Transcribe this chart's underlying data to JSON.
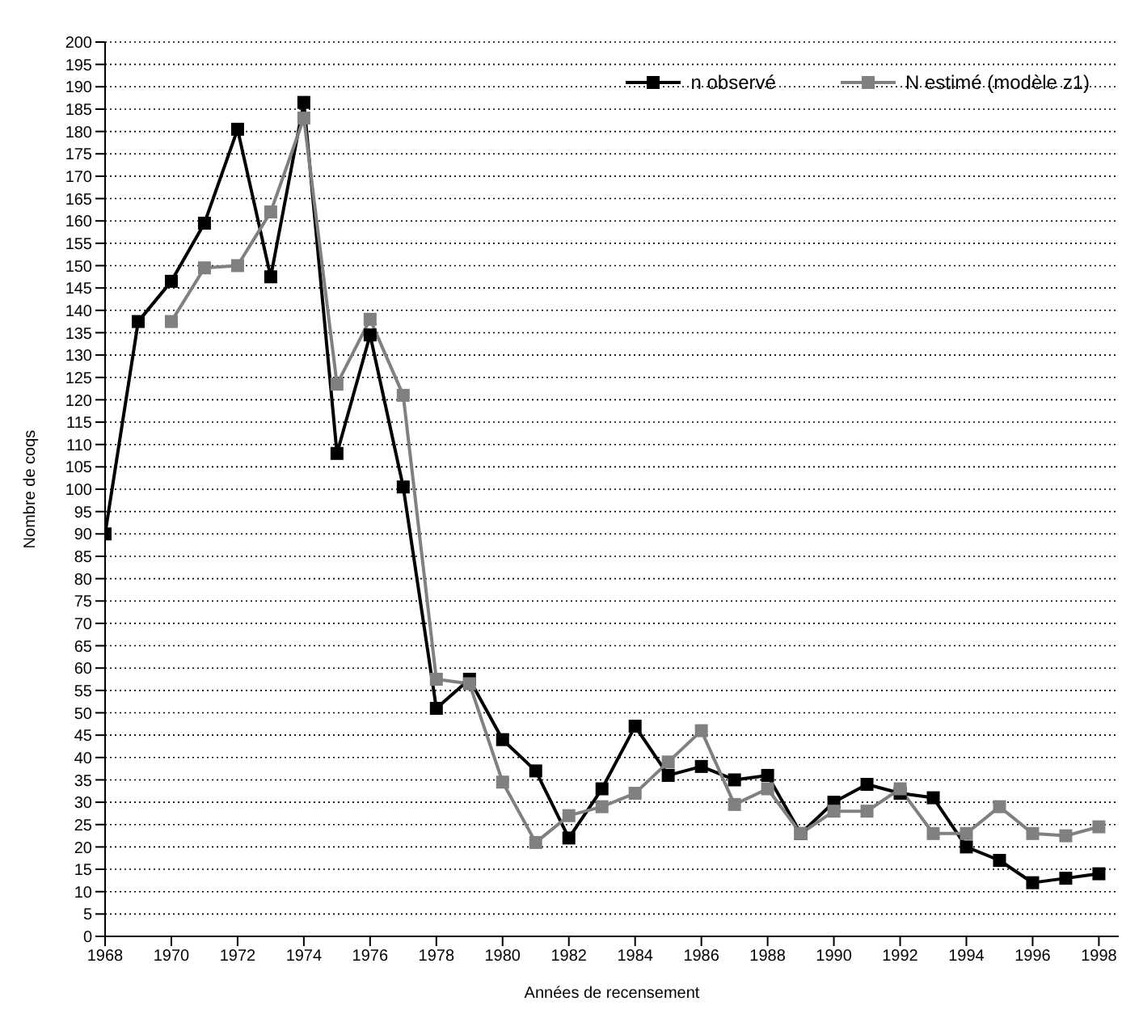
{
  "chart_data": {
    "type": "line",
    "xlabel": "Années de recensement",
    "ylabel": "Nombre de coqs",
    "x": [
      1968,
      1969,
      1970,
      1971,
      1972,
      1973,
      1974,
      1975,
      1976,
      1977,
      1978,
      1979,
      1980,
      1981,
      1982,
      1983,
      1984,
      1985,
      1986,
      1987,
      1988,
      1989,
      1990,
      1991,
      1992,
      1993,
      1994,
      1995,
      1996,
      1997,
      1998
    ],
    "series": [
      {
        "name": "n observé",
        "color": "#000000",
        "values": [
          90,
          137.5,
          146.5,
          159.5,
          180.5,
          147.5,
          186.5,
          108,
          134.5,
          100.5,
          51,
          57.5,
          44,
          37,
          22,
          33,
          47,
          36,
          38,
          35,
          36,
          23,
          30,
          34,
          32,
          31,
          20,
          17,
          12,
          13,
          14
        ]
      },
      {
        "name": "N estimé (modèle z1)",
        "color": "#808080",
        "values": [
          null,
          null,
          137.5,
          149.5,
          150,
          162,
          183,
          123.5,
          138,
          121,
          57.5,
          56.5,
          34.5,
          21,
          27,
          29,
          32,
          39,
          46,
          29.5,
          33,
          23,
          28,
          28,
          33,
          23,
          23,
          29,
          23,
          22.5,
          24.5
        ]
      }
    ],
    "xlim": [
      1968,
      1998.6
    ],
    "xticks": [
      1968,
      1970,
      1972,
      1974,
      1976,
      1978,
      1980,
      1982,
      1984,
      1986,
      1988,
      1990,
      1992,
      1994,
      1996,
      1998
    ],
    "ylim": [
      0,
      200
    ],
    "yticks": [
      0,
      5,
      10,
      15,
      20,
      25,
      30,
      35,
      40,
      45,
      50,
      55,
      60,
      65,
      70,
      75,
      80,
      85,
      90,
      95,
      100,
      105,
      110,
      115,
      120,
      125,
      130,
      135,
      140,
      145,
      150,
      155,
      160,
      165,
      170,
      175,
      180,
      185,
      190,
      195,
      200
    ],
    "grid": "y",
    "legend": "top right",
    "marker": "square",
    "line_style": "solid"
  }
}
